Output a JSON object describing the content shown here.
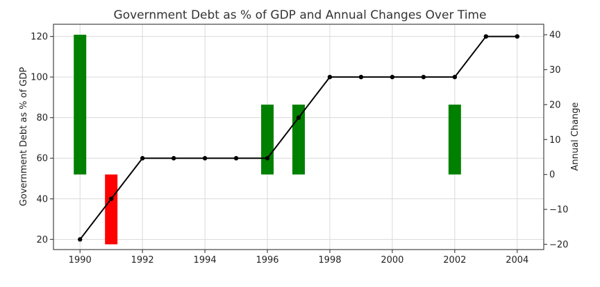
{
  "chart_data": {
    "type": "bar+line",
    "title": "Government Debt as % of GDP and Annual Changes Over Time",
    "ylabel_left": "Government Debt as % of GDP",
    "ylabel_right": "Annual Change",
    "xlabel": "",
    "xlim": [
      1989.15,
      2004.85
    ],
    "ylim_left": [
      15,
      126
    ],
    "ylim_right": [
      -21.5,
      43
    ],
    "x_ticks": [
      1990,
      1992,
      1994,
      1996,
      1998,
      2000,
      2002,
      2004
    ],
    "y_left_ticks": [
      20,
      40,
      60,
      80,
      100,
      120
    ],
    "y_right_ticks": [
      -20,
      -10,
      0,
      10,
      20,
      30,
      40
    ],
    "y_right_tick_labels": [
      "−20",
      "−10",
      "0",
      "10",
      "20",
      "30",
      "40"
    ],
    "grid": true,
    "line_series": {
      "axis": "left",
      "color": "#000000",
      "x": [
        1990,
        1991,
        1992,
        1993,
        1994,
        1995,
        1996,
        1997,
        1998,
        1999,
        2000,
        2001,
        2002,
        2003,
        2004
      ],
      "values": [
        20,
        40,
        60,
        60,
        60,
        60,
        60,
        80,
        100,
        100,
        100,
        100,
        100,
        120,
        120
      ]
    },
    "bar_series": {
      "axis": "right",
      "positive_color": "#008000",
      "negative_color": "#ff0000",
      "x": [
        1990,
        1991,
        1992,
        1993,
        1994,
        1995,
        1996,
        1997,
        1998,
        1999,
        2000,
        2001,
        2002,
        2003,
        2004
      ],
      "values": [
        40,
        -20,
        0,
        0,
        0,
        0,
        20,
        20,
        0,
        0,
        0,
        0,
        20,
        0,
        0
      ]
    }
  }
}
